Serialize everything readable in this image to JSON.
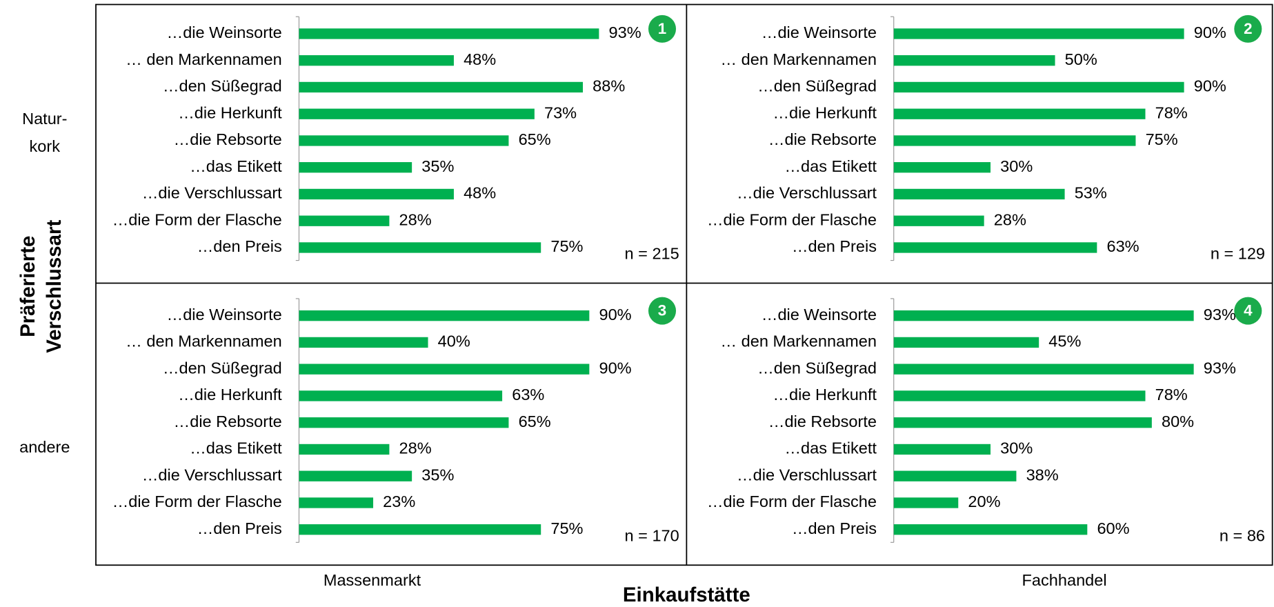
{
  "chart_data": [
    {
      "type": "bar",
      "orientation": "horizontal",
      "badge": "1",
      "note": "n = 215",
      "color": "#00b050",
      "categories": [
        "…die Weinsorte",
        "… den Markennamen",
        "…den Süßegrad",
        "…die Herkunft",
        "…die Rebsorte",
        "…das Etikett",
        "…die Verschlussart",
        "…die Form der Flasche",
        "…den Preis"
      ],
      "values": [
        93,
        48,
        88,
        73,
        65,
        35,
        48,
        28,
        75
      ],
      "value_labels": [
        "93%",
        "48%",
        "88%",
        "73%",
        "65%",
        "35%",
        "48%",
        "28%",
        "75%"
      ]
    },
    {
      "type": "bar",
      "orientation": "horizontal",
      "badge": "2",
      "note": "n = 129",
      "color": "#00b050",
      "categories": [
        "…die Weinsorte",
        "… den Markennamen",
        "…den Süßegrad",
        "…die Herkunft",
        "…die Rebsorte",
        "…das Etikett",
        "…die Verschlussart",
        "…die Form der Flasche",
        "…den Preis"
      ],
      "values": [
        90,
        50,
        90,
        78,
        75,
        30,
        53,
        28,
        63
      ],
      "value_labels": [
        "90%",
        "50%",
        "90%",
        "78%",
        "75%",
        "30%",
        "53%",
        "28%",
        "63%"
      ]
    },
    {
      "type": "bar",
      "orientation": "horizontal",
      "badge": "3",
      "note": "n = 170",
      "color": "#00b050",
      "categories": [
        "…die Weinsorte",
        "… den Markennamen",
        "…den Süßegrad",
        "…die Herkunft",
        "…die Rebsorte",
        "…das Etikett",
        "…die Verschlussart",
        "…die Form der Flasche",
        "…den Preis"
      ],
      "values": [
        90,
        40,
        90,
        63,
        65,
        28,
        35,
        23,
        75
      ],
      "value_labels": [
        "90%",
        "40%",
        "90%",
        "63%",
        "65%",
        "28%",
        "35%",
        "23%",
        "75%"
      ]
    },
    {
      "type": "bar",
      "orientation": "horizontal",
      "badge": "4",
      "note": "n = 86",
      "color": "#00b050",
      "categories": [
        "…die Weinsorte",
        "… den Markennamen",
        "…den Süßegrad",
        "…die Herkunft",
        "…die Rebsorte",
        "…das Etikett",
        "…die Verschlussart",
        "…die Form der Flasche",
        "…den Preis"
      ],
      "values": [
        93,
        45,
        93,
        78,
        80,
        30,
        38,
        20,
        60
      ],
      "value_labels": [
        "93%",
        "45%",
        "93%",
        "78%",
        "80%",
        "30%",
        "38%",
        "20%",
        "60%"
      ]
    }
  ],
  "row_labels": [
    [
      "Natur-",
      "kork"
    ],
    [
      "andere"
    ]
  ],
  "y_axis_title": [
    "Präferierte",
    "Verschlussart"
  ],
  "column_labels": [
    "Massenmarkt",
    "Fachhandel"
  ],
  "x_axis_title": "Einkaufstätte"
}
